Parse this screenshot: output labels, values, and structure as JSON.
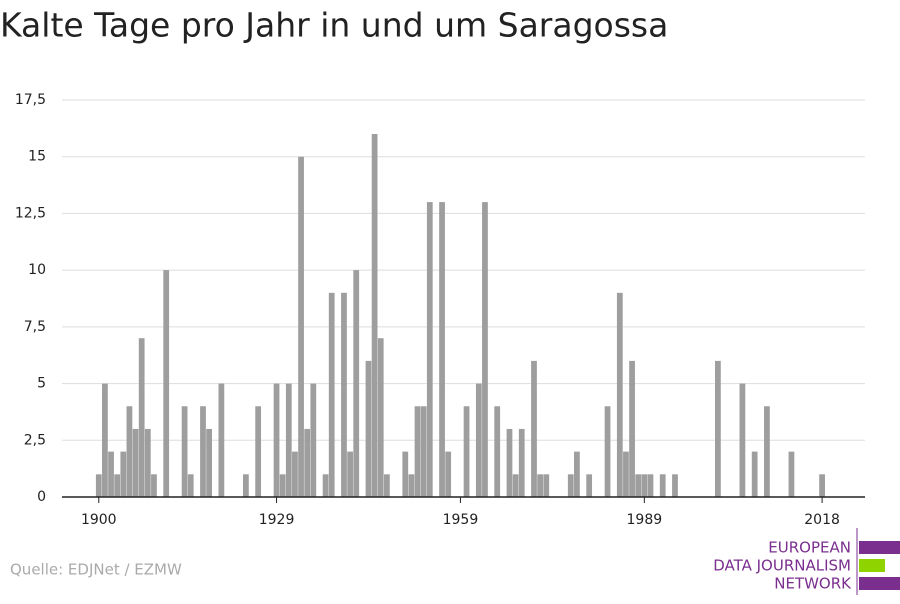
{
  "chart_data": {
    "type": "bar",
    "title": "Kalte Tage pro Jahr in und um Saragossa",
    "source": "Quelle: EDJNet / EZMW",
    "logo": [
      "EUROPEAN",
      "DATA JOURNALISM",
      "NETWORK"
    ],
    "color": "#9e9e9e",
    "x": [
      1900,
      1901,
      1902,
      1903,
      1904,
      1905,
      1906,
      1907,
      1908,
      1909,
      1910,
      1911,
      1912,
      1913,
      1914,
      1915,
      1916,
      1917,
      1918,
      1919,
      1920,
      1921,
      1922,
      1923,
      1924,
      1925,
      1926,
      1927,
      1928,
      1929,
      1930,
      1931,
      1932,
      1933,
      1934,
      1935,
      1936,
      1937,
      1938,
      1939,
      1940,
      1941,
      1942,
      1943,
      1944,
      1945,
      1946,
      1947,
      1948,
      1949,
      1950,
      1951,
      1952,
      1953,
      1954,
      1955,
      1956,
      1957,
      1958,
      1959,
      1960,
      1961,
      1962,
      1963,
      1964,
      1965,
      1966,
      1967,
      1968,
      1969,
      1970,
      1971,
      1972,
      1973,
      1974,
      1975,
      1976,
      1977,
      1978,
      1979,
      1980,
      1981,
      1982,
      1983,
      1984,
      1985,
      1986,
      1987,
      1988,
      1989,
      1990,
      1991,
      1992,
      1993,
      1994,
      1995,
      1996,
      1997,
      1998,
      1999,
      2000,
      2001,
      2002,
      2003,
      2004,
      2005,
      2006,
      2007,
      2008,
      2009,
      2010,
      2011,
      2012,
      2013,
      2014,
      2015,
      2016,
      2017,
      2018
    ],
    "values": [
      1,
      5,
      2,
      1,
      2,
      4,
      3,
      7,
      3,
      1,
      0,
      10,
      0,
      0,
      4,
      1,
      0,
      4,
      3,
      0,
      5,
      0,
      0,
      0,
      1,
      0,
      4,
      0,
      0,
      5,
      1,
      5,
      2,
      15,
      3,
      5,
      0,
      1,
      9,
      0,
      9,
      2,
      10,
      0,
      6,
      16,
      7,
      1,
      0,
      0,
      2,
      1,
      4,
      4,
      13,
      0,
      13,
      2,
      0,
      0,
      4,
      0,
      5,
      13,
      0,
      4,
      0,
      3,
      1,
      3,
      0,
      6,
      1,
      1,
      0,
      0,
      0,
      1,
      2,
      0,
      1,
      0,
      0,
      4,
      0,
      9,
      2,
      6,
      1,
      1,
      1,
      0,
      1,
      0,
      1,
      0,
      0,
      0,
      0,
      0,
      0,
      6,
      0,
      0,
      0,
      5,
      0,
      2,
      0,
      4,
      0,
      0,
      0,
      2,
      0,
      0,
      0,
      0,
      1
    ],
    "xlim": [
      1894,
      2025
    ],
    "xticks": [
      1900,
      1929,
      1959,
      1989,
      2018
    ],
    "ylim": [
      0,
      17.5
    ],
    "yticks": [
      0,
      {
        "value": 2.5,
        "label": "2,5"
      },
      5,
      {
        "value": 7.5,
        "label": "7,5"
      },
      10,
      {
        "value": 12.5,
        "label": "12,5"
      },
      15,
      {
        "value": 17.5,
        "label": "17,5"
      }
    ],
    "grid": true
  }
}
